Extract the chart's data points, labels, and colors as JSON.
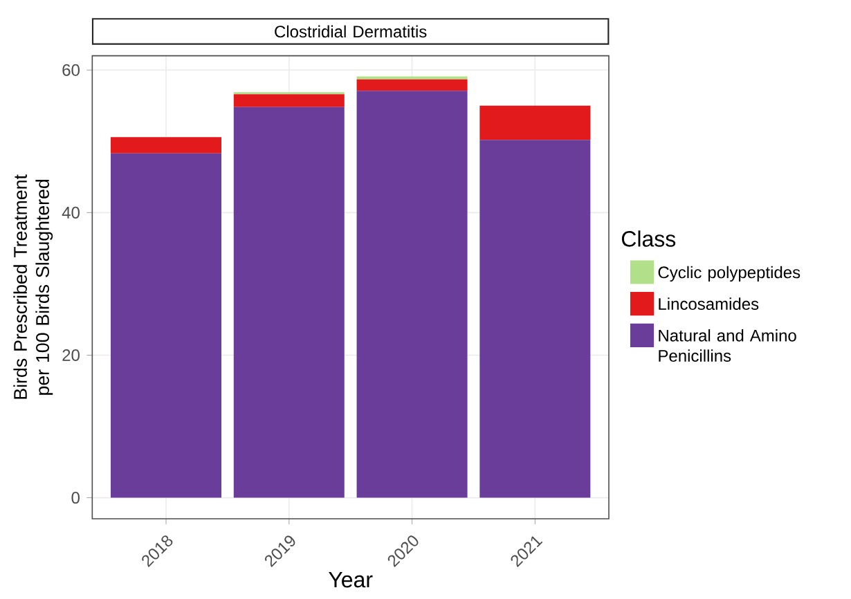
{
  "chart_data": {
    "type": "bar",
    "title": "Clostridial Dermatitis",
    "xlabel": "Year",
    "ylabel": "Birds Prescribed Treatment per 100 Birds Slaughtered",
    "legend_title": "Class",
    "categories": [
      "2018",
      "2019",
      "2020",
      "2021"
    ],
    "series": [
      {
        "name": "Natural and Amino Penicillins",
        "color": "#6a3d9a",
        "values": [
          48.3,
          54.8,
          57.1,
          50.2
        ]
      },
      {
        "name": "Lincosamides",
        "color": "#e31a1c",
        "values": [
          2.3,
          1.8,
          1.6,
          4.8
        ]
      },
      {
        "name": "Cyclic polypeptides",
        "color": "#b2df8a",
        "values": [
          null,
          0.3,
          0.4,
          null
        ]
      }
    ],
    "stacked": true,
    "ylim": [
      -2.95,
      62
    ],
    "yticks": [
      0,
      20,
      40,
      60
    ],
    "grid": true,
    "legend": "right"
  }
}
